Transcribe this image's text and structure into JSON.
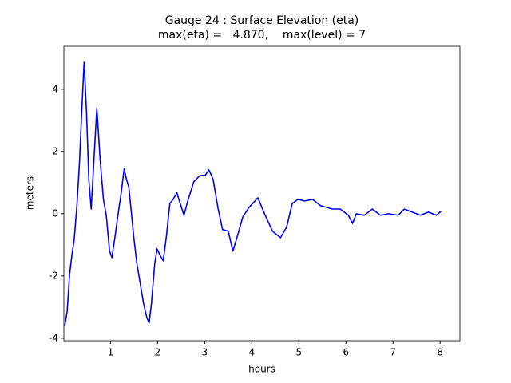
{
  "chart_data": {
    "type": "line",
    "title": "Gauge 24 : Surface Elevation (eta)",
    "subtitle": "max(eta) =   4.870,    max(level) = 7",
    "x_label": "hours",
    "y_label": "meters",
    "xlim": [
      0.01,
      8.42
    ],
    "ylim": [
      -4.08,
      5.38
    ],
    "xticks": [
      1,
      2,
      3,
      4,
      5,
      6,
      7,
      8
    ],
    "yticks": [
      -4,
      -2,
      0,
      2,
      4
    ],
    "grid": false,
    "series": [
      {
        "name": "eta",
        "color": "#0000ff",
        "x": [
          0.03,
          0.08,
          0.13,
          0.18,
          0.23,
          0.29,
          0.34,
          0.39,
          0.44,
          0.49,
          0.54,
          0.59,
          0.64,
          0.71,
          0.78,
          0.85,
          0.91,
          0.98,
          1.03,
          1.1,
          1.17,
          1.22,
          1.29,
          1.34,
          1.39,
          1.44,
          1.49,
          1.56,
          1.63,
          1.7,
          1.77,
          1.82,
          1.87,
          1.94,
          1.99,
          2.05,
          2.12,
          2.19,
          2.26,
          2.33,
          2.41,
          2.48,
          2.56,
          2.65,
          2.77,
          2.9,
          3.01,
          3.09,
          3.18,
          3.28,
          3.38,
          3.5,
          3.6,
          3.7,
          3.81,
          3.94,
          4.13,
          4.27,
          4.44,
          4.61,
          4.74,
          4.86,
          4.98,
          5.12,
          5.29,
          5.46,
          5.71,
          5.88,
          6.05,
          6.14,
          6.22,
          6.39,
          6.56,
          6.73,
          6.9,
          7.11,
          7.24,
          7.41,
          7.58,
          7.75,
          7.92,
          8.02
        ],
        "values": [
          -3.59,
          -3.13,
          -1.97,
          -1.33,
          -0.82,
          0.33,
          1.6,
          3.3,
          4.87,
          3.3,
          1.1,
          0.15,
          1.5,
          3.4,
          1.74,
          0.46,
          -0.05,
          -1.2,
          -1.41,
          -0.69,
          0.08,
          0.59,
          1.44,
          1.1,
          0.85,
          0.08,
          -0.69,
          -1.6,
          -2.23,
          -2.87,
          -3.33,
          -3.51,
          -2.87,
          -1.59,
          -1.13,
          -1.33,
          -1.51,
          -0.69,
          0.33,
          0.46,
          0.67,
          0.33,
          -0.05,
          0.46,
          1.03,
          1.23,
          1.23,
          1.41,
          1.1,
          0.2,
          -0.51,
          -0.56,
          -1.2,
          -0.69,
          -0.1,
          0.2,
          0.51,
          0,
          -0.56,
          -0.77,
          -0.43,
          0.33,
          0.46,
          0.41,
          0.46,
          0.26,
          0.15,
          0.15,
          -0.05,
          -0.31,
          0,
          -0.05,
          0.15,
          -0.05,
          0,
          -0.05,
          0.15,
          0.05,
          -0.05,
          0.05,
          -0.05,
          0.08
        ]
      }
    ]
  }
}
